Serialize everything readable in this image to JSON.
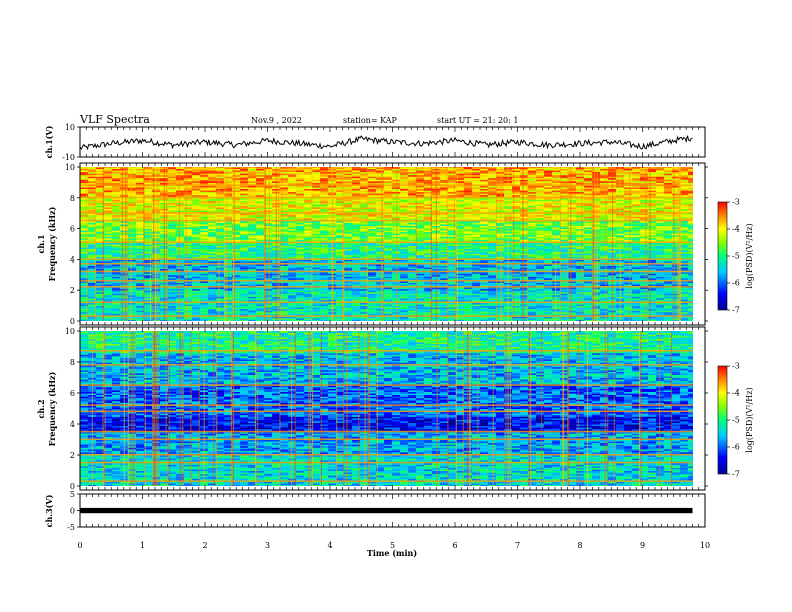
{
  "header": {
    "title": "VLF Spectra",
    "date": "Nov.9 , 2022",
    "station": "station= KAP",
    "start": "start UT = 21: 20: 1"
  },
  "chart_data": [
    {
      "type": "line",
      "title": "",
      "ylabel": "ch.1(V)",
      "ylim": [
        -10,
        10
      ],
      "yticks": [
        "10",
        "-10"
      ],
      "xlim": [
        0,
        10
      ],
      "x": [
        0.0,
        0.5,
        1.0,
        1.5,
        2.0,
        2.5,
        3.0,
        3.5,
        4.0,
        4.5,
        5.0,
        5.5,
        6.0,
        6.5,
        7.0,
        7.5,
        8.0,
        8.5,
        9.0,
        9.5,
        9.8
      ],
      "values": [
        -4,
        -1,
        1,
        -2,
        0,
        -2,
        1,
        -1,
        -3,
        2,
        0,
        -1,
        1,
        -2,
        0,
        -2,
        -1,
        0,
        -3,
        1,
        3
      ],
      "grid": false
    },
    {
      "type": "heatmap",
      "title": "",
      "ylabel_top": "ch.1",
      "ylabel": "Frequency (kHz)",
      "ylim": [
        0,
        10
      ],
      "yticks": [
        "0",
        "2",
        "4",
        "6",
        "8",
        "10"
      ],
      "xlim": [
        0,
        10
      ],
      "data_end_min": 9.8,
      "description_bands": [
        {
          "from_khz": 0.0,
          "to_khz": 2.0,
          "level": -5.3
        },
        {
          "from_khz": 2.0,
          "to_khz": 4.0,
          "level": -5.6
        },
        {
          "from_khz": 4.0,
          "to_khz": 5.0,
          "level": -5.0
        },
        {
          "from_khz": 5.0,
          "to_khz": 6.5,
          "level": -4.6
        },
        {
          "from_khz": 6.5,
          "to_khz": 8.0,
          "level": -4.1
        },
        {
          "from_khz": 8.0,
          "to_khz": 10.0,
          "level": -3.7
        }
      ],
      "lines_khz": [
        0.3,
        1.2,
        2.2,
        2.6,
        3.2,
        3.7,
        4.0,
        5.1,
        6.5,
        7.0,
        8.0,
        8.8
      ],
      "colorbar": {
        "label": "log(PSD)(V²/Hz)",
        "ticks": [
          "-3",
          "-4",
          "-5",
          "-6",
          "-7"
        ],
        "range": [
          -7,
          -3
        ]
      }
    },
    {
      "type": "heatmap",
      "title": "",
      "ylabel_top": "ch.2",
      "ylabel": "Frequency (kHz)",
      "ylim": [
        0,
        10
      ],
      "yticks": [
        "0",
        "2",
        "4",
        "6",
        "8",
        "10"
      ],
      "xlim": [
        0,
        10
      ],
      "data_end_min": 9.8,
      "description_bands": [
        {
          "from_khz": 0.0,
          "to_khz": 2.0,
          "level": -5.4
        },
        {
          "from_khz": 2.0,
          "to_khz": 3.5,
          "level": -5.7
        },
        {
          "from_khz": 3.5,
          "to_khz": 4.5,
          "level": -6.4
        },
        {
          "from_khz": 4.5,
          "to_khz": 6.5,
          "level": -6.0
        },
        {
          "from_khz": 6.5,
          "to_khz": 8.5,
          "level": -5.6
        },
        {
          "from_khz": 8.5,
          "to_khz": 10.0,
          "level": -5.1
        }
      ],
      "lines_khz": [
        0.3,
        1.5,
        2.0,
        3.0,
        3.5,
        4.8,
        5.2,
        6.5,
        7.8,
        8.7
      ],
      "colorbar": {
        "label": "log(PSD)(V²/Hz)",
        "ticks": [
          "-3",
          "-4",
          "-5",
          "-6",
          "-7"
        ],
        "range": [
          -7,
          -3
        ]
      }
    },
    {
      "type": "line",
      "title": "",
      "ylabel": "ch.3(V)",
      "ylim": [
        -5,
        5
      ],
      "yticks": [
        "5",
        "0",
        "-5"
      ],
      "xlim": [
        0,
        10
      ],
      "x": [
        0,
        9.8
      ],
      "values": [
        0,
        0
      ],
      "band_amplitude": 0.8,
      "xlabel": "Time (min)",
      "xticks": [
        "0",
        "1",
        "2",
        "3",
        "4",
        "5",
        "6",
        "7",
        "8",
        "9",
        "10"
      ]
    }
  ]
}
